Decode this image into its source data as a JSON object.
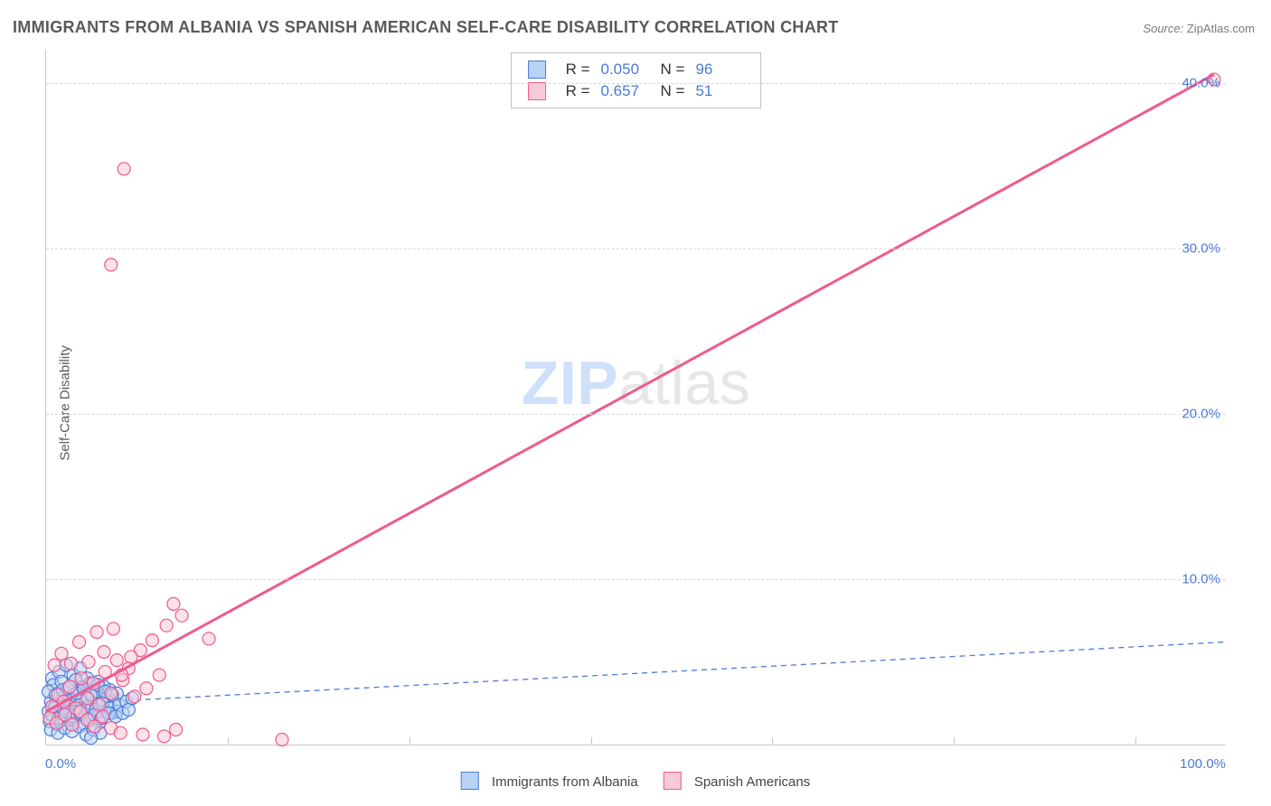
{
  "title": "IMMIGRANTS FROM ALBANIA VS SPANISH AMERICAN SELF-CARE DISABILITY CORRELATION CHART",
  "source_label": "Source:",
  "source_value": "ZipAtlas.com",
  "ylabel": "Self-Care Disability",
  "watermark_a": "ZIP",
  "watermark_b": "atlas",
  "chart": {
    "type": "scatter",
    "background_color": "#ffffff",
    "grid_color": "#d8d8d8",
    "axis_color": "#c9c9c9",
    "tick_label_color": "#4b7bd6",
    "xlim": [
      0,
      100
    ],
    "ylim": [
      0,
      42
    ],
    "y_ticks": [
      10,
      20,
      30,
      40
    ],
    "y_tick_labels": [
      "10.0%",
      "20.0%",
      "30.0%",
      "40.0%"
    ],
    "x_minor_ticks": [
      15.4,
      30.8,
      46.2,
      61.5,
      76.9,
      92.3
    ],
    "x_end_labels": [
      "0.0%",
      "100.0%"
    ],
    "legend_series": [
      {
        "label": "Immigrants from Albania",
        "fill": "#b9d2f6",
        "stroke": "#4b7bd6"
      },
      {
        "label": "Spanish Americans",
        "fill": "#f8c9d6",
        "stroke": "#ef5a8f"
      }
    ],
    "stats": [
      {
        "swatch_fill": "#b9d2f6",
        "swatch_stroke": "#4b7bd6",
        "R_label": "R =",
        "R": "0.050",
        "N_label": "N =",
        "N": "96"
      },
      {
        "swatch_fill": "#f8c9d6",
        "swatch_stroke": "#ef5a8f",
        "R_label": "R =",
        "R": "0.657",
        "N_label": "N =",
        "N": "51"
      }
    ],
    "marker_radius": 7,
    "marker_opacity": 0.55,
    "series_blue": {
      "fill": "#b9d2f6",
      "stroke": "#4b7bd6",
      "trend": {
        "x1": 0,
        "y1": 2.4,
        "x2": 100,
        "y2": 6.2,
        "dash": "6,5",
        "width": 1.3,
        "color": "#4b7bd6"
      },
      "points": [
        [
          0.2,
          2.0
        ],
        [
          0.4,
          2.6
        ],
        [
          0.6,
          1.6
        ],
        [
          0.8,
          2.4
        ],
        [
          1.0,
          3.1
        ],
        [
          1.2,
          1.9
        ],
        [
          1.4,
          2.8
        ],
        [
          1.6,
          2.2
        ],
        [
          1.8,
          3.4
        ],
        [
          2.0,
          2.0
        ],
        [
          2.2,
          3.0
        ],
        [
          2.4,
          1.7
        ],
        [
          2.6,
          2.6
        ],
        [
          2.8,
          3.2
        ],
        [
          3.0,
          2.1
        ],
        [
          3.2,
          2.9
        ],
        [
          3.4,
          1.8
        ],
        [
          3.6,
          3.6
        ],
        [
          3.8,
          2.3
        ],
        [
          4.0,
          3.0
        ],
        [
          4.2,
          2.5
        ],
        [
          4.4,
          3.8
        ],
        [
          4.6,
          1.6
        ],
        [
          4.8,
          2.7
        ],
        [
          5.0,
          2.0
        ],
        [
          5.2,
          2.9
        ],
        [
          5.4,
          3.3
        ],
        [
          5.6,
          1.9
        ],
        [
          5.8,
          2.4
        ],
        [
          6.0,
          3.1
        ],
        [
          0.5,
          4.0
        ],
        [
          1.1,
          4.4
        ],
        [
          1.7,
          4.8
        ],
        [
          2.3,
          4.2
        ],
        [
          2.9,
          4.6
        ],
        [
          3.5,
          4.0
        ],
        [
          0.3,
          1.4
        ],
        [
          0.9,
          1.2
        ],
        [
          1.5,
          1.5
        ],
        [
          2.1,
          1.3
        ],
        [
          2.7,
          1.7
        ],
        [
          3.3,
          1.2
        ],
        [
          3.9,
          1.5
        ],
        [
          4.5,
          1.3
        ],
        [
          0.6,
          3.6
        ],
        [
          1.3,
          3.8
        ],
        [
          1.9,
          3.4
        ],
        [
          2.5,
          3.9
        ],
        [
          3.1,
          3.5
        ],
        [
          3.7,
          3.7
        ],
        [
          4.3,
          3.2
        ],
        [
          4.9,
          3.5
        ],
        [
          0.4,
          0.9
        ],
        [
          1.0,
          0.7
        ],
        [
          1.6,
          1.0
        ],
        [
          2.2,
          0.8
        ],
        [
          2.8,
          1.1
        ],
        [
          3.4,
          0.6
        ],
        [
          4.0,
          0.9
        ],
        [
          4.6,
          0.7
        ],
        [
          0.7,
          2.2
        ],
        [
          1.2,
          2.1
        ],
        [
          1.8,
          2.4
        ],
        [
          2.4,
          2.0
        ],
        [
          3.0,
          2.6
        ],
        [
          3.6,
          2.3
        ],
        [
          4.2,
          2.1
        ],
        [
          4.8,
          2.5
        ],
        [
          5.4,
          2.2
        ],
        [
          6.0,
          2.0
        ],
        [
          0.2,
          3.2
        ],
        [
          0.8,
          3.0
        ],
        [
          1.4,
          3.3
        ],
        [
          2.0,
          3.5
        ],
        [
          2.6,
          3.1
        ],
        [
          3.2,
          3.4
        ],
        [
          3.8,
          3.0
        ],
        [
          4.4,
          3.6
        ],
        [
          5.0,
          3.2
        ],
        [
          5.6,
          3.0
        ],
        [
          0.5,
          1.8
        ],
        [
          1.1,
          1.6
        ],
        [
          1.7,
          2.0
        ],
        [
          2.3,
          1.7
        ],
        [
          2.9,
          1.9
        ],
        [
          3.5,
          1.5
        ],
        [
          4.1,
          1.8
        ],
        [
          4.7,
          1.6
        ],
        [
          5.3,
          1.9
        ],
        [
          5.9,
          1.7
        ],
        [
          6.2,
          2.4
        ],
        [
          6.5,
          1.9
        ],
        [
          6.8,
          2.6
        ],
        [
          7.0,
          2.1
        ],
        [
          7.3,
          2.8
        ],
        [
          3.8,
          0.4
        ]
      ]
    },
    "series_pink": {
      "fill": "#f8c9d6",
      "stroke": "#ef5a8f",
      "trend": {
        "x1": 0,
        "y1": 2.0,
        "x2": 99,
        "y2": 40.5,
        "dash": "none",
        "width": 3,
        "color": "#ef5a8f"
      },
      "points": [
        [
          0.5,
          2.3
        ],
        [
          1.0,
          3.0
        ],
        [
          1.5,
          2.6
        ],
        [
          2.0,
          3.5
        ],
        [
          2.5,
          2.2
        ],
        [
          3.0,
          4.0
        ],
        [
          3.5,
          2.8
        ],
        [
          4.0,
          3.7
        ],
        [
          4.5,
          2.4
        ],
        [
          5.0,
          4.4
        ],
        [
          5.5,
          3.1
        ],
        [
          6.0,
          5.1
        ],
        [
          6.5,
          3.9
        ],
        [
          7.0,
          4.6
        ],
        [
          7.5,
          2.9
        ],
        [
          8.0,
          5.7
        ],
        [
          8.5,
          3.4
        ],
        [
          9.0,
          6.3
        ],
        [
          9.6,
          4.2
        ],
        [
          10.2,
          7.2
        ],
        [
          10.8,
          8.5
        ],
        [
          11.5,
          7.8
        ],
        [
          13.8,
          6.4
        ],
        [
          5.5,
          1.0
        ],
        [
          6.3,
          0.7
        ],
        [
          8.2,
          0.6
        ],
        [
          10.0,
          0.5
        ],
        [
          11.0,
          0.9
        ],
        [
          20.0,
          0.3
        ],
        [
          0.7,
          4.8
        ],
        [
          1.3,
          5.5
        ],
        [
          2.1,
          4.9
        ],
        [
          2.8,
          6.2
        ],
        [
          3.6,
          5.0
        ],
        [
          4.3,
          6.8
        ],
        [
          4.9,
          5.6
        ],
        [
          5.7,
          7.0
        ],
        [
          6.4,
          4.2
        ],
        [
          7.2,
          5.3
        ],
        [
          0.3,
          1.6
        ],
        [
          0.9,
          1.3
        ],
        [
          1.6,
          1.8
        ],
        [
          2.2,
          1.2
        ],
        [
          2.9,
          2.0
        ],
        [
          3.5,
          1.5
        ],
        [
          4.1,
          1.1
        ],
        [
          4.8,
          1.7
        ],
        [
          5.5,
          29.0
        ],
        [
          6.6,
          34.8
        ],
        [
          99.0,
          40.2
        ]
      ]
    }
  }
}
